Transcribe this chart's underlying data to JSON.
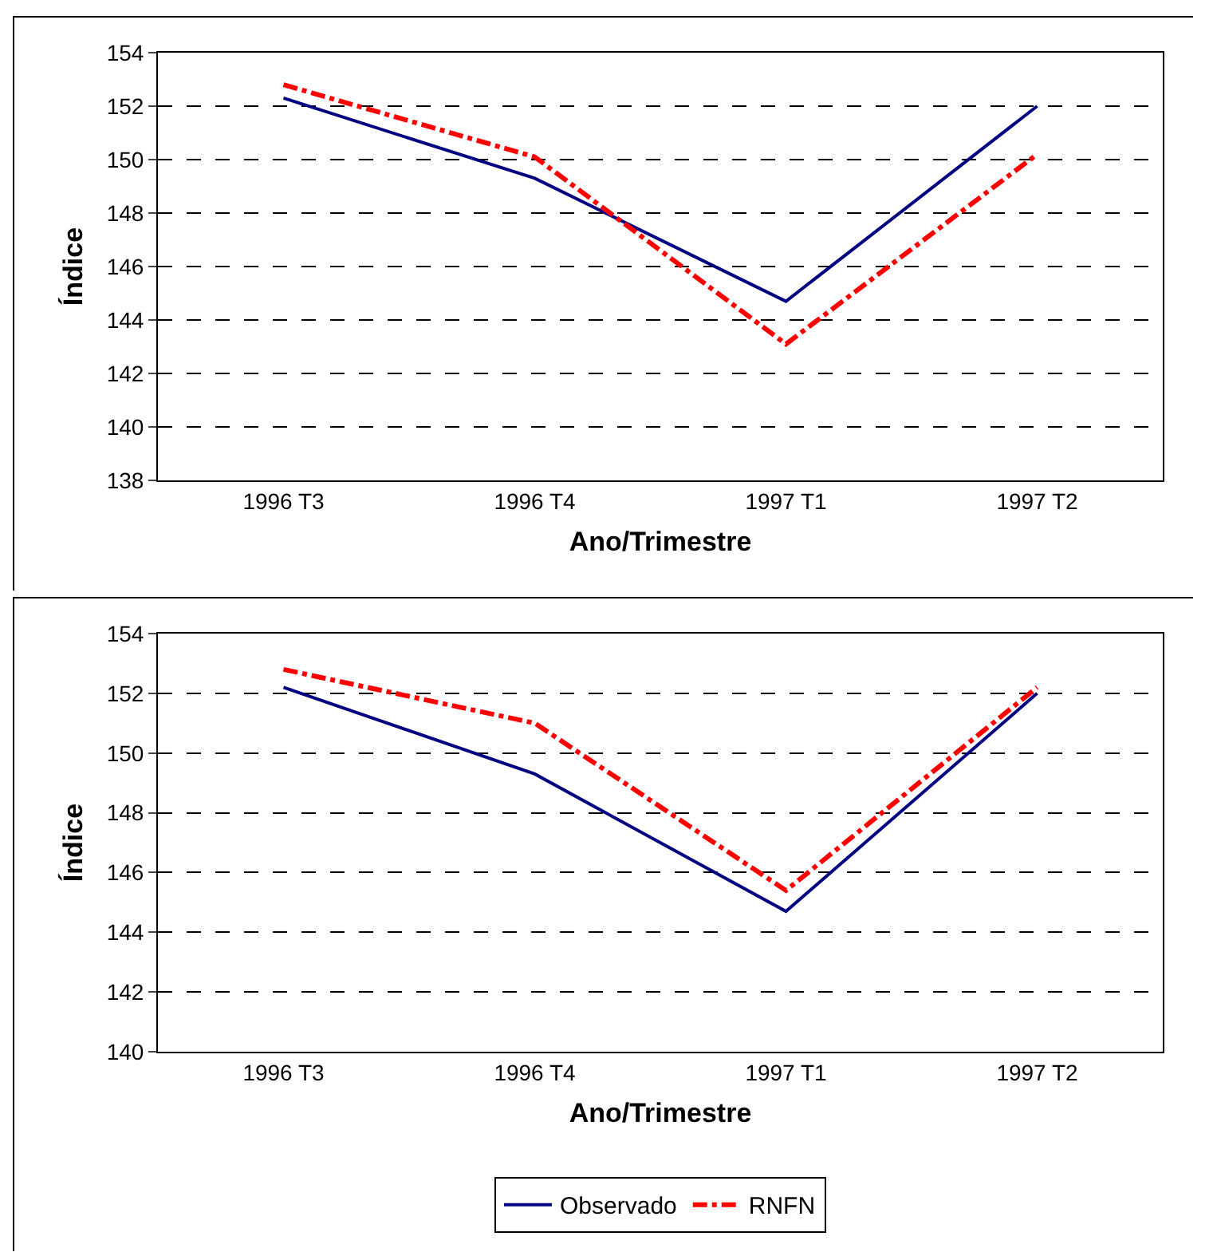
{
  "chart_data": [
    {
      "type": "line",
      "xlabel": "Ano/Trimestre",
      "ylabel": "Índice",
      "categories": [
        "1996 T3",
        "1996 T4",
        "1997 T1",
        "1997 T2"
      ],
      "series": [
        {
          "color": "#000080",
          "line_style": "solid",
          "values": [
            152.3,
            149.3,
            144.7,
            152.0
          ]
        },
        {
          "color": "#ff0000",
          "line_style": "dashed",
          "values": [
            152.8,
            150.1,
            143.1,
            150.2
          ]
        }
      ],
      "ylim": [
        138,
        154
      ],
      "yticks": [
        138,
        140,
        142,
        144,
        146,
        148,
        150,
        152,
        154
      ],
      "grid": "y",
      "legend": false,
      "marker": "none"
    },
    {
      "type": "line",
      "xlabel": "Ano/Trimestre",
      "ylabel": "Índice",
      "categories": [
        "1996 T3",
        "1996 T4",
        "1997 T1",
        "1997 T2"
      ],
      "series": [
        {
          "name": "Observado",
          "color": "#000080",
          "line_style": "solid",
          "values": [
            152.2,
            149.3,
            144.7,
            152.0
          ]
        },
        {
          "name": "RNFN",
          "color": "#ff0000",
          "line_style": "dashed",
          "values": [
            152.8,
            151.0,
            145.4,
            152.2
          ]
        }
      ],
      "ylim": [
        140,
        154
      ],
      "yticks": [
        140,
        142,
        144,
        146,
        148,
        150,
        152,
        154
      ],
      "grid": "y",
      "legend": "bottom",
      "marker": "none"
    }
  ]
}
